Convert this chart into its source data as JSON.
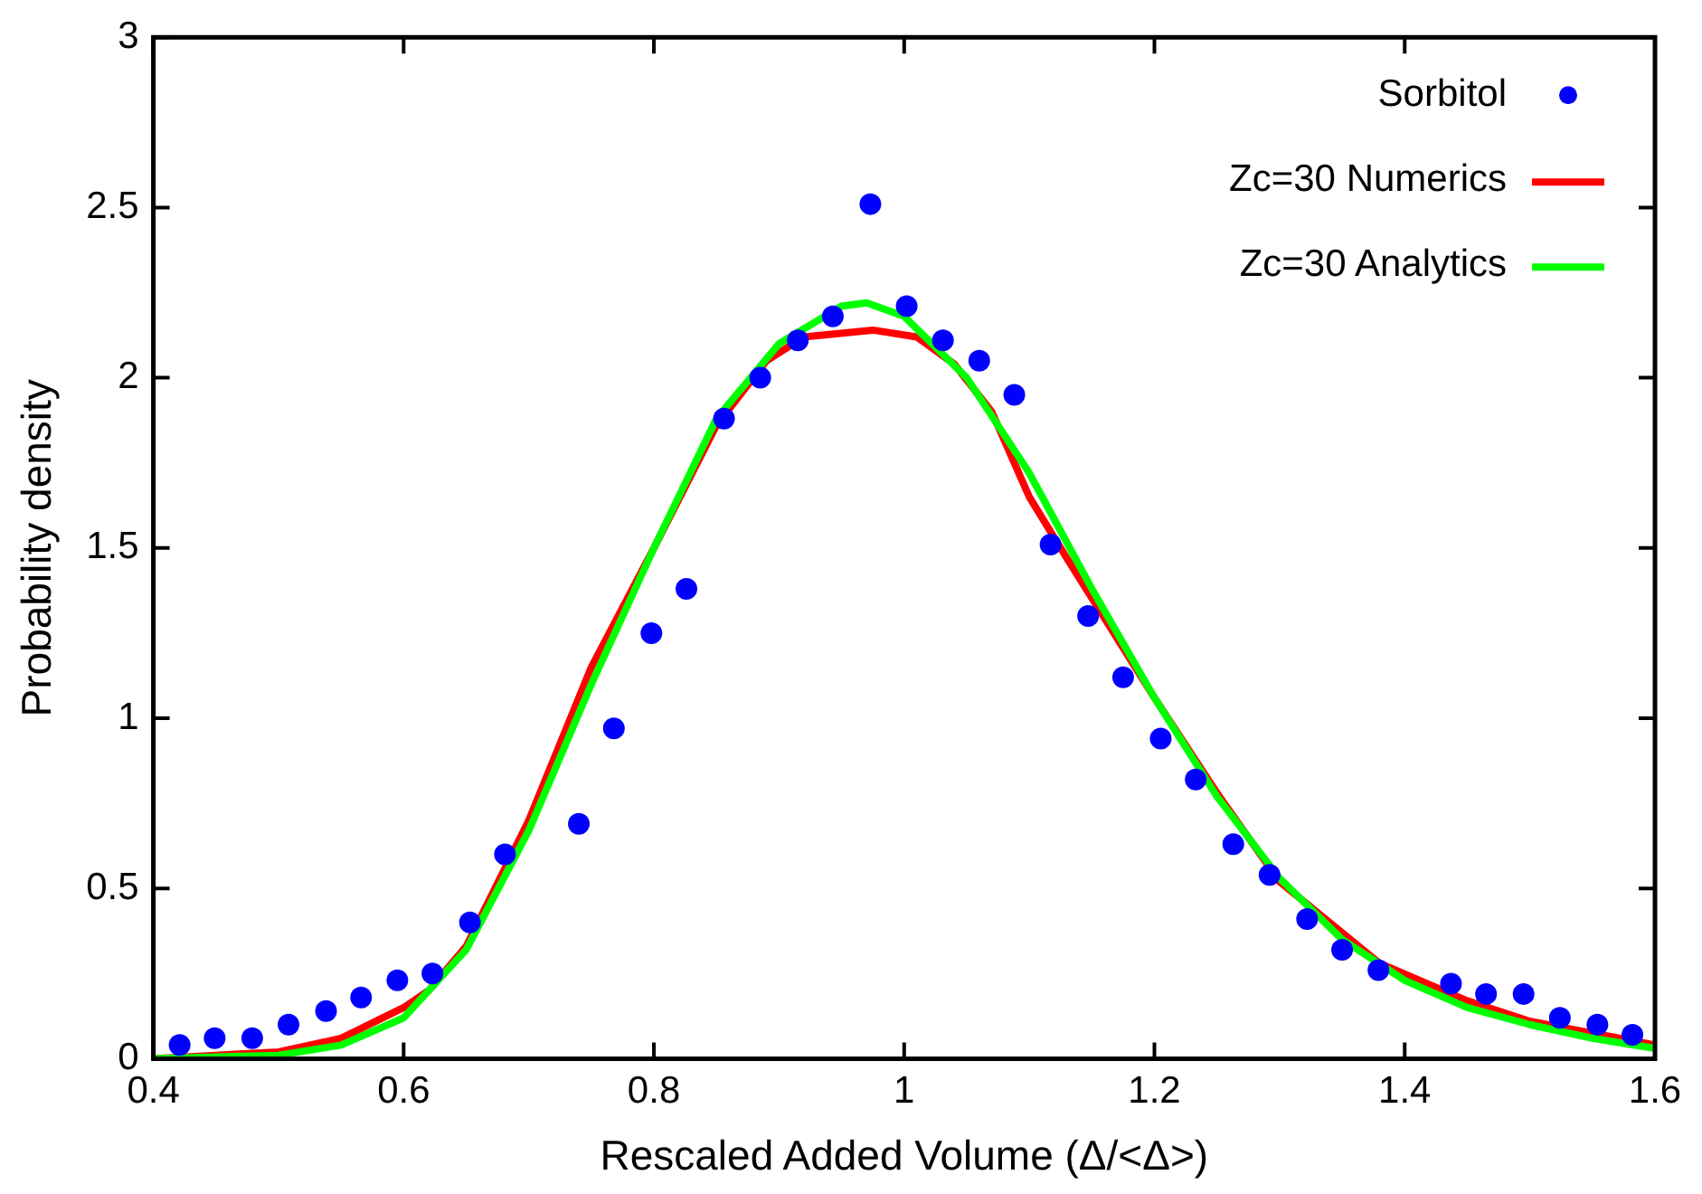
{
  "chart_data": {
    "type": "scatter",
    "xlabel": "Rescaled Added Volume (Δ/<Δ>)",
    "ylabel": "Probability density",
    "xlim": [
      0.4,
      1.6
    ],
    "xticks": [
      0.4,
      0.6,
      0.8,
      1,
      1.2,
      1.4,
      1.6
    ],
    "ylim": [
      0,
      3
    ],
    "yticks": [
      0,
      0.5,
      1,
      1.5,
      2,
      2.5,
      3
    ],
    "grid": false,
    "legend": "top right",
    "series": [
      {
        "name": "Sorbitol",
        "type": "scatter",
        "marker": "circle",
        "color": "#0000ff",
        "x": [
          0.421,
          0.449,
          0.479,
          0.508,
          0.538,
          0.566,
          0.595,
          0.623,
          0.653,
          0.681,
          0.74,
          0.768,
          0.798,
          0.826,
          0.856,
          0.885,
          0.915,
          0.943,
          0.973,
          1.002,
          1.031,
          1.06,
          1.088,
          1.117,
          1.147,
          1.175,
          1.205,
          1.233,
          1.263,
          1.292,
          1.322,
          1.35,
          1.379,
          1.437,
          1.465,
          1.495,
          1.524,
          1.554,
          1.582
        ],
        "values": [
          0.04,
          0.06,
          0.06,
          0.1,
          0.14,
          0.18,
          0.23,
          0.25,
          0.4,
          0.6,
          0.69,
          0.97,
          1.25,
          1.38,
          1.88,
          2.0,
          2.11,
          2.18,
          2.51,
          2.21,
          2.11,
          2.05,
          1.95,
          1.51,
          1.3,
          1.12,
          0.94,
          0.82,
          0.63,
          0.54,
          0.41,
          0.32,
          0.26,
          0.22,
          0.19,
          0.19,
          0.12,
          0.1,
          0.07
        ]
      },
      {
        "name": "Zc=30 Numerics",
        "type": "line",
        "marker": "none",
        "color": "#ff0000",
        "x": [
          0.4,
          0.5,
          0.55,
          0.6,
          0.62,
          0.65,
          0.7,
          0.75,
          0.8,
          0.85,
          0.89,
          0.92,
          0.975,
          1.01,
          1.04,
          1.07,
          1.1,
          1.13,
          1.2,
          1.25,
          1.3,
          1.38,
          1.45,
          1.5,
          1.6
        ],
        "values": [
          0,
          0.02,
          0.06,
          0.15,
          0.2,
          0.33,
          0.7,
          1.15,
          1.5,
          1.86,
          2.05,
          2.12,
          2.14,
          2.12,
          2.04,
          1.9,
          1.65,
          1.47,
          1.06,
          0.78,
          0.52,
          0.28,
          0.17,
          0.11,
          0.04
        ]
      },
      {
        "name": "Zc=30 Analytics",
        "type": "line",
        "marker": "none",
        "color": "#00ff00",
        "x": [
          0.4,
          0.5,
          0.55,
          0.6,
          0.65,
          0.7,
          0.75,
          0.8,
          0.85,
          0.9,
          0.95,
          0.97,
          1.0,
          1.05,
          1.1,
          1.15,
          1.2,
          1.25,
          1.3,
          1.35,
          1.4,
          1.45,
          1.5,
          1.55,
          1.6
        ],
        "values": [
          0,
          0.01,
          0.04,
          0.12,
          0.32,
          0.67,
          1.1,
          1.5,
          1.88,
          2.1,
          2.21,
          2.22,
          2.18,
          2.0,
          1.72,
          1.38,
          1.06,
          0.77,
          0.53,
          0.35,
          0.23,
          0.15,
          0.1,
          0.06,
          0.03
        ]
      }
    ]
  }
}
